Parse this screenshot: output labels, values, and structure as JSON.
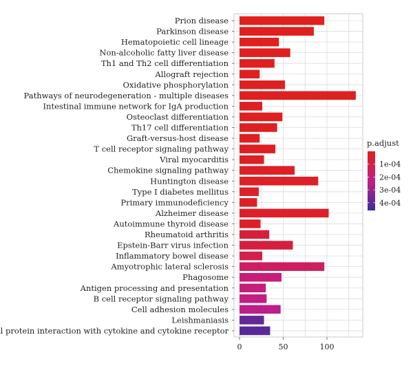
{
  "chart_data": {
    "type": "bar",
    "orientation": "horizontal",
    "title": "",
    "xlabel": "",
    "ylabel": "",
    "xlim": [
      0,
      135
    ],
    "xticks": [
      0,
      50,
      100
    ],
    "grid": true,
    "legend": {
      "title": "p.adjust",
      "placement": "right",
      "type": "colorbar",
      "range": [
        1e-08,
        0.00046
      ],
      "ticks": [
        {
          "value": 0.0001,
          "label": "1e-04"
        },
        {
          "value": 0.0002,
          "label": "2e-04"
        },
        {
          "value": 0.0003,
          "label": "3e-04"
        },
        {
          "value": 0.0004,
          "label": "4e-04"
        }
      ],
      "colors": {
        "low": "#e0201b",
        "mid": "#c21e86",
        "high": "#3a2d9c"
      }
    },
    "categories": [
      "Prion disease",
      "Parkinson disease",
      "Hematopoietic cell lineage",
      "Non-alcoholic fatty liver disease",
      "Th1 and Th2 cell differentiation",
      "Allograft rejection",
      "Oxidative phosphorylation",
      "Pathways of neurodegeneration - multiple diseases",
      "Intestinal immune network for IgA production",
      "Osteoclast differentiation",
      "Th17 cell differentiation",
      "Graft-versus-host disease",
      "T cell receptor signaling pathway",
      "Viral myocarditis",
      "Chemokine signaling pathway",
      "Huntington disease",
      "Type I diabetes mellitus",
      "Primary immunodeficiency",
      "Alzheimer disease",
      "Autoimmune thyroid disease",
      "Rheumatoid arthritis",
      "Epstein-Barr virus infection",
      "Inflammatory bowel disease",
      "Amyotrophic lateral sclerosis",
      "Phagosome",
      "Antigen processing and presentation",
      "B cell receptor signaling pathway",
      "Cell adhesion molecules",
      "Leishmaniasis",
      "Viral protein interaction with cytokine and cytokine receptor"
    ],
    "values": [
      97,
      85,
      45,
      58,
      40,
      23,
      52,
      133,
      26,
      49,
      43,
      23,
      41,
      28,
      63,
      90,
      22,
      20,
      102,
      24,
      34,
      61,
      26,
      97,
      48,
      30,
      31,
      47,
      28,
      35
    ],
    "p_adjust": [
      5e-06,
      8e-06,
      8e-06,
      1e-05,
      1e-05,
      1.2e-05,
      1.2e-05,
      1e-05,
      1.4e-05,
      1.6e-05,
      1.6e-05,
      1.6e-05,
      1.8e-05,
      2e-05,
      2.5e-05,
      2.5e-05,
      2.5e-05,
      2.5e-05,
      3e-05,
      3e-05,
      7e-05,
      8e-05,
      0.0001,
      0.00015,
      0.0002,
      0.00021,
      0.00022,
      0.00024,
      0.00039,
      0.00041
    ]
  }
}
